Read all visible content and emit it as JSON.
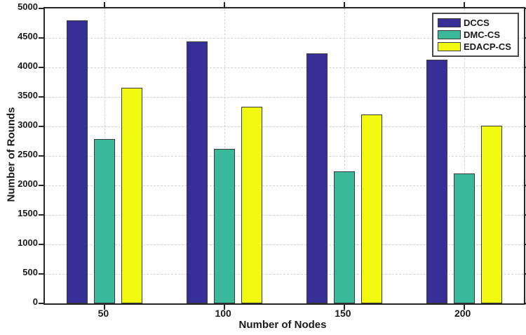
{
  "chart_data": {
    "type": "bar",
    "title": "",
    "xlabel": "Number of Nodes",
    "ylabel": "Number of Rounds",
    "categories": [
      "50",
      "100",
      "150",
      "200"
    ],
    "series": [
      {
        "name": "DCCS",
        "color": "#352F97",
        "values": [
          4800,
          4440,
          4240,
          4130
        ]
      },
      {
        "name": "DMC-CS",
        "color": "#3AB89A",
        "values": [
          2780,
          2620,
          2240,
          2200
        ]
      },
      {
        "name": "EDACP-CS",
        "color": "#F1F90F",
        "values": [
          3660,
          3330,
          3200,
          3010
        ]
      }
    ],
    "ylim": [
      0,
      5000
    ],
    "ytick_step": 500,
    "y_ticks": [
      "0",
      "500",
      "1000",
      "1500",
      "2000",
      "2500",
      "3000",
      "3500",
      "4000",
      "4500",
      "5000"
    ],
    "grid": true,
    "grid_style": "dashed",
    "legend_position": "top-right",
    "bar_edge_color": "#3a3a3a",
    "axis_color": "#262626",
    "gridline_color": "#d4d4d4"
  }
}
